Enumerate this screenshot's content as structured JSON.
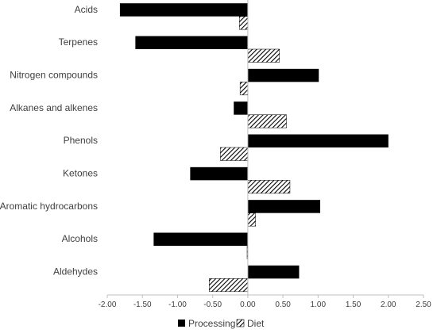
{
  "chart_data": {
    "type": "bar",
    "orientation": "horizontal",
    "categories": [
      "Acids",
      "Terpenes",
      "Nitrogen compounds",
      "Alkanes and alkenes",
      "Phenols",
      "Ketones",
      "Aromatic hydrocarbons",
      "Alcohols",
      "Aldehydes"
    ],
    "series": [
      {
        "name": "Processing",
        "fill": "solid",
        "color": "#000000",
        "values": [
          -1.82,
          -1.6,
          1.01,
          -0.2,
          2.0,
          -0.82,
          1.03,
          -1.34,
          0.73
        ]
      },
      {
        "name": "Diet",
        "fill": "hatched",
        "color": "#000000",
        "values": [
          -0.12,
          0.45,
          -0.11,
          0.55,
          -0.39,
          0.6,
          0.11,
          -0.01,
          -0.55
        ]
      }
    ],
    "xlim": [
      -2.0,
      2.5
    ],
    "xticks": [
      "-2.00",
      "-1.50",
      "-1.00",
      "-0.50",
      "0.00",
      "0.50",
      "1.00",
      "1.50",
      "2.00",
      "2.50"
    ],
    "title": "",
    "xlabel": "",
    "ylabel": "",
    "grid": false,
    "legend_position": "bottom"
  }
}
